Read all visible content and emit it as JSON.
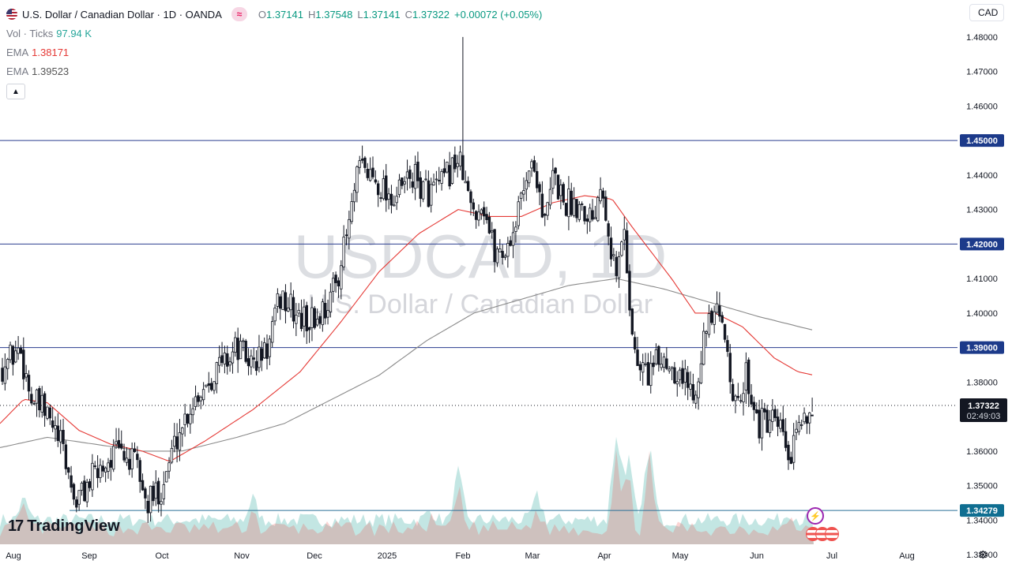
{
  "header": {
    "symbol_title": "U.S. Dollar / Canadian Dollar · 1D · OANDA",
    "ohlc": {
      "o_label": "O",
      "o": "1.37141",
      "h_label": "H",
      "h": "1.37548",
      "l_label": "L",
      "l": "1.37141",
      "c_label": "C",
      "c": "1.37322",
      "change": "+0.00072 (+0.05%)"
    },
    "volume": {
      "label": "Vol · Ticks",
      "value": "97.94 K"
    },
    "ema1": {
      "label": "EMA",
      "value": "1.38171"
    },
    "ema2": {
      "label": "EMA",
      "value": "1.39523"
    },
    "currency": "CAD"
  },
  "watermark": {
    "symbol": "USDCAD, 1D",
    "name": "U.S. Dollar / Canadian Dollar"
  },
  "branding": {
    "logo_text": "TradingView",
    "logo_mark": "17"
  },
  "colors": {
    "up": "#26a69a",
    "down": "#ef5350",
    "candle": "#131722",
    "ema_fast": "#e53935",
    "ema_slow": "#8a8a8a",
    "hline": "#2a3d8f",
    "label_bg": "#131722"
  },
  "chart_data": {
    "type": "candlestick",
    "y_axis": {
      "min": 1.325,
      "max": 1.485,
      "ticks": [
        "1.48000",
        "1.47000",
        "1.46000",
        "1.45000",
        "1.44000",
        "1.43000",
        "1.42000",
        "1.41000",
        "1.40000",
        "1.39000",
        "1.38000",
        "1.37000",
        "1.36000",
        "1.35000",
        "1.34000",
        "1.33000"
      ]
    },
    "x_axis": {
      "ticks": [
        "Aug",
        "Sep",
        "Oct",
        "Nov",
        "Dec",
        "2025",
        "Feb",
        "Mar",
        "Apr",
        "May",
        "Jun",
        "Jul",
        "Aug"
      ]
    },
    "horizontal_levels": [
      {
        "value": 1.45,
        "label": "1.45000"
      },
      {
        "value": 1.42,
        "label": "1.42000"
      },
      {
        "value": 1.39,
        "label": "1.39000"
      },
      {
        "value": 1.34279,
        "label": "1.34279"
      }
    ],
    "last_price": {
      "value": 1.37322,
      "label": "1.37322",
      "countdown": "02:49:03"
    },
    "path_keypoints": [
      [
        0,
        1.384
      ],
      [
        25,
        1.39
      ],
      [
        40,
        1.375
      ],
      [
        60,
        1.37
      ],
      [
        80,
        1.36
      ],
      [
        95,
        1.345
      ],
      [
        110,
        1.35
      ],
      [
        130,
        1.356
      ],
      [
        150,
        1.36
      ],
      [
        175,
        1.355
      ],
      [
        185,
        1.344
      ],
      [
        205,
        1.35
      ],
      [
        225,
        1.365
      ],
      [
        245,
        1.375
      ],
      [
        270,
        1.383
      ],
      [
        300,
        1.39
      ],
      [
        320,
        1.385
      ],
      [
        340,
        1.39
      ],
      [
        355,
        1.405
      ],
      [
        380,
        1.398
      ],
      [
        400,
        1.398
      ],
      [
        420,
        1.405
      ],
      [
        435,
        1.418
      ],
      [
        445,
        1.43
      ],
      [
        455,
        1.442
      ],
      [
        470,
        1.44
      ],
      [
        500,
        1.433
      ],
      [
        520,
        1.44
      ],
      [
        540,
        1.435
      ],
      [
        560,
        1.437
      ],
      [
        578,
        1.445
      ],
      [
        586,
        1.44
      ],
      [
        596,
        1.43
      ],
      [
        612,
        1.432
      ],
      [
        625,
        1.418
      ],
      [
        640,
        1.418
      ],
      [
        655,
        1.428
      ],
      [
        668,
        1.443
      ],
      [
        680,
        1.44
      ],
      [
        690,
        1.425
      ],
      [
        700,
        1.44
      ],
      [
        715,
        1.432
      ],
      [
        735,
        1.432
      ],
      [
        750,
        1.428
      ],
      [
        762,
        1.44
      ],
      [
        770,
        1.425
      ],
      [
        780,
        1.41
      ],
      [
        790,
        1.425
      ],
      [
        798,
        1.4
      ],
      [
        805,
        1.385
      ],
      [
        820,
        1.383
      ],
      [
        840,
        1.387
      ],
      [
        860,
        1.383
      ],
      [
        878,
        1.377
      ],
      [
        890,
        1.392
      ],
      [
        905,
        1.4
      ],
      [
        920,
        1.392
      ],
      [
        932,
        1.37
      ],
      [
        945,
        1.383
      ],
      [
        960,
        1.368
      ],
      [
        975,
        1.368
      ],
      [
        990,
        1.365
      ],
      [
        1000,
        1.356
      ],
      [
        1010,
        1.365
      ],
      [
        1020,
        1.372
      ],
      [
        1030,
        1.373
      ]
    ],
    "ema_fast_keypoints": [
      [
        0,
        1.368
      ],
      [
        30,
        1.375
      ],
      [
        60,
        1.374
      ],
      [
        100,
        1.366
      ],
      [
        140,
        1.362
      ],
      [
        180,
        1.36
      ],
      [
        215,
        1.357
      ],
      [
        260,
        1.363
      ],
      [
        320,
        1.372
      ],
      [
        380,
        1.383
      ],
      [
        430,
        1.397
      ],
      [
        480,
        1.412
      ],
      [
        530,
        1.423
      ],
      [
        580,
        1.43
      ],
      [
        620,
        1.428
      ],
      [
        660,
        1.428
      ],
      [
        700,
        1.432
      ],
      [
        740,
        1.434
      ],
      [
        775,
        1.433
      ],
      [
        800,
        1.425
      ],
      [
        850,
        1.41
      ],
      [
        880,
        1.4
      ],
      [
        905,
        1.4
      ],
      [
        940,
        1.396
      ],
      [
        980,
        1.387
      ],
      [
        1010,
        1.383
      ],
      [
        1030,
        1.382
      ]
    ],
    "ema_slow_keypoints": [
      [
        0,
        1.361
      ],
      [
        60,
        1.364
      ],
      [
        120,
        1.362
      ],
      [
        180,
        1.36
      ],
      [
        230,
        1.36
      ],
      [
        300,
        1.364
      ],
      [
        360,
        1.368
      ],
      [
        420,
        1.375
      ],
      [
        480,
        1.382
      ],
      [
        540,
        1.392
      ],
      [
        600,
        1.4
      ],
      [
        660,
        1.404
      ],
      [
        720,
        1.408
      ],
      [
        780,
        1.41
      ],
      [
        840,
        1.407
      ],
      [
        900,
        1.403
      ],
      [
        960,
        1.399
      ],
      [
        1030,
        1.395
      ]
    ],
    "volume_spikes": [
      [
        30,
        28
      ],
      [
        320,
        28
      ],
      [
        545,
        12
      ],
      [
        580,
        62
      ],
      [
        680,
        30
      ],
      [
        780,
        110
      ],
      [
        795,
        85
      ],
      [
        822,
        100
      ],
      [
        1000,
        10
      ]
    ]
  }
}
